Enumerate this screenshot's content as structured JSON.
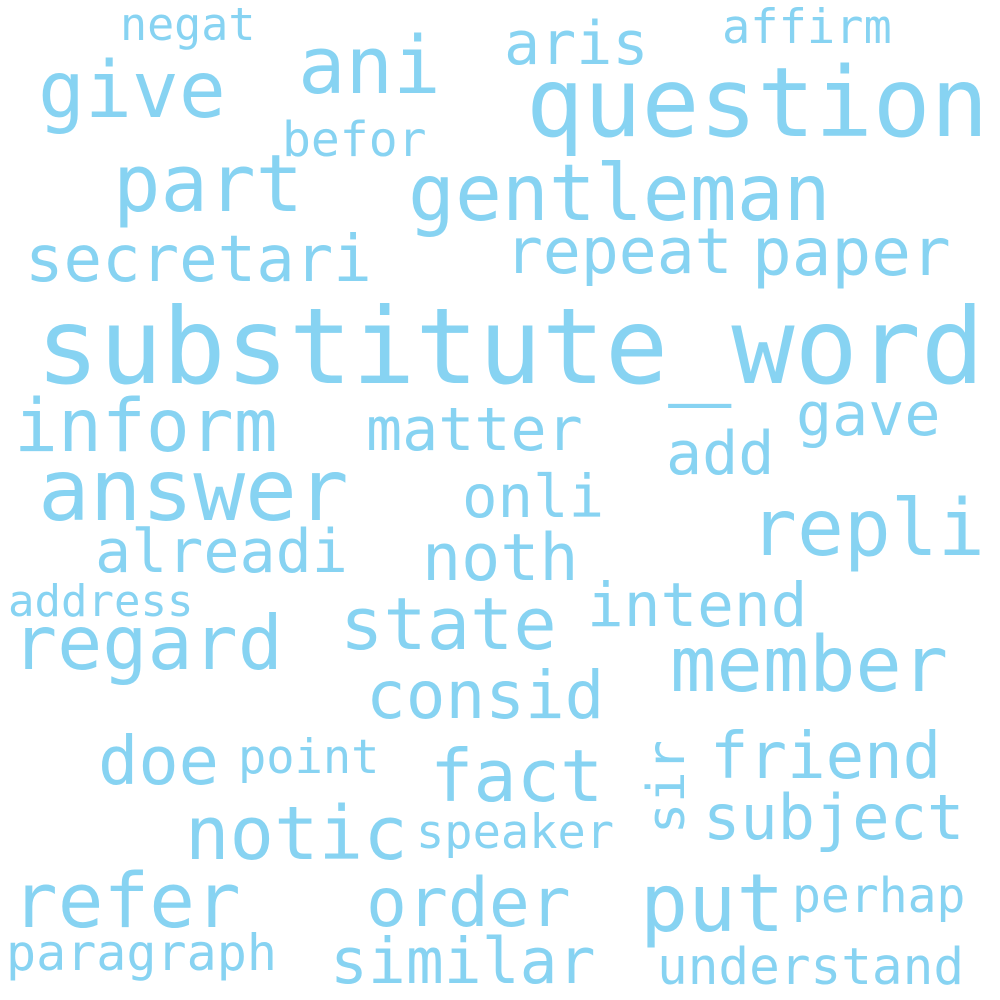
{
  "cloud": {
    "color": "#87d3f2",
    "background": "#ffffff",
    "words": [
      "substitute_word",
      "question",
      "answer",
      "gentleman",
      "member",
      "repli",
      "give",
      "part",
      "ani",
      "refer",
      "put",
      "notic",
      "regard",
      "inform",
      "state",
      "paper",
      "repeat",
      "secretari",
      "consid",
      "order",
      "similar",
      "subject",
      "friend",
      "fact",
      "doe",
      "alreadi",
      "noth",
      "intend",
      "matter",
      "gave",
      "add",
      "onli",
      "aris",
      "befor",
      "affirm",
      "negat",
      "paragraph",
      "understand",
      "speaker",
      "perhap",
      "point",
      "address",
      "sir"
    ]
  }
}
